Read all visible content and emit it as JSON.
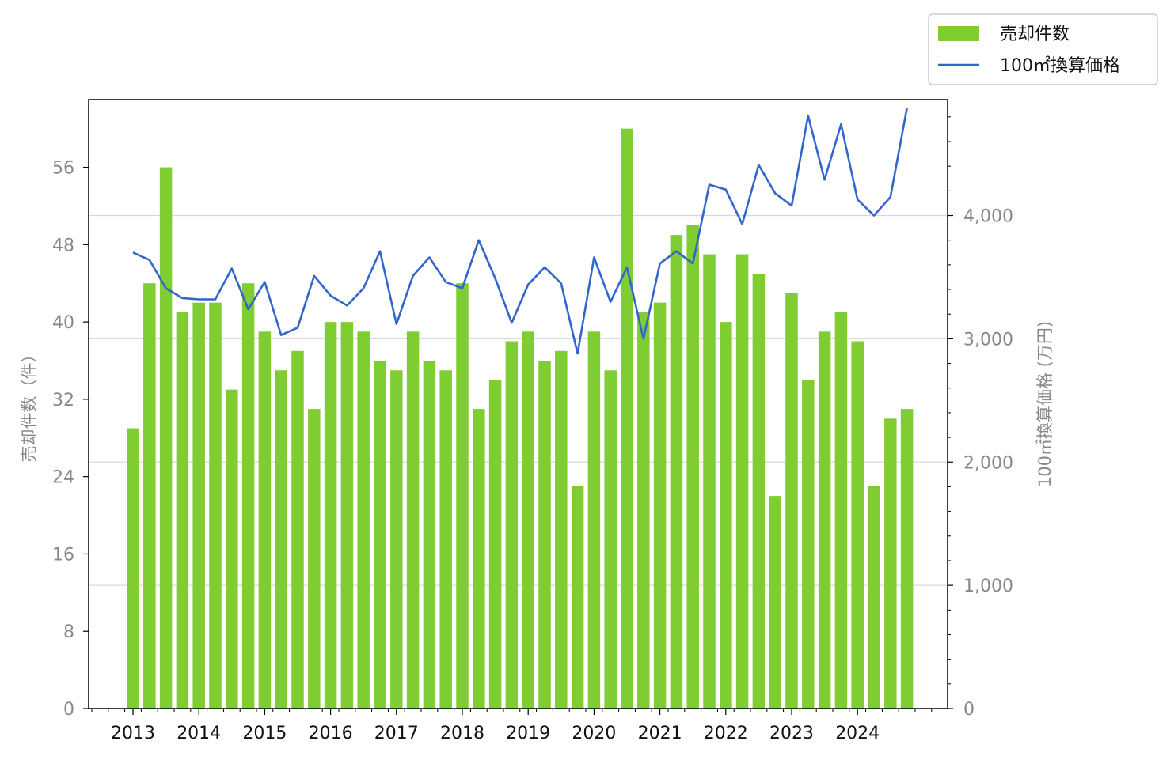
{
  "chart_data": {
    "type": "bar+line",
    "title": "",
    "x": [
      "2013Q1",
      "2013Q2",
      "2013Q3",
      "2013Q4",
      "2014Q1",
      "2014Q2",
      "2014Q3",
      "2014Q4",
      "2015Q1",
      "2015Q2",
      "2015Q3",
      "2015Q4",
      "2016Q1",
      "2016Q2",
      "2016Q3",
      "2016Q4",
      "2017Q1",
      "2017Q2",
      "2017Q3",
      "2017Q4",
      "2018Q1",
      "2018Q2",
      "2018Q3",
      "2018Q4",
      "2019Q1",
      "2019Q2",
      "2019Q3",
      "2019Q4",
      "2020Q1",
      "2020Q2",
      "2020Q3",
      "2020Q4",
      "2021Q1",
      "2021Q2",
      "2021Q3",
      "2021Q4",
      "2022Q1",
      "2022Q2",
      "2022Q3",
      "2022Q4",
      "2023Q1",
      "2023Q2",
      "2023Q3",
      "2023Q4",
      "2024Q1",
      "2024Q2",
      "2024Q3",
      "2024Q4"
    ],
    "x_tick_labels": [
      "2013",
      "2014",
      "2015",
      "2016",
      "2017",
      "2018",
      "2019",
      "2020",
      "2021",
      "2022",
      "2023",
      "2024"
    ],
    "series": [
      {
        "name": "売却件数",
        "type": "bar",
        "axis": "left",
        "color": "#7fcc33",
        "values": [
          29,
          44,
          56,
          41,
          42,
          42,
          33,
          44,
          39,
          35,
          37,
          31,
          40,
          40,
          39,
          36,
          35,
          39,
          36,
          35,
          44,
          31,
          34,
          38,
          39,
          36,
          37,
          23,
          39,
          35,
          60,
          41,
          42,
          49,
          50,
          47,
          40,
          47,
          45,
          22,
          43,
          34,
          39,
          41,
          38,
          23,
          30,
          31
        ]
      },
      {
        "name": "100㎡換算価格",
        "type": "line",
        "axis": "right",
        "color": "#3366cc",
        "values": [
          3700,
          3640,
          3410,
          3330,
          3320,
          3320,
          3570,
          3240,
          3460,
          3030,
          3090,
          3510,
          3350,
          3270,
          3410,
          3710,
          3120,
          3510,
          3660,
          3460,
          3410,
          3800,
          3490,
          3130,
          3440,
          3580,
          3450,
          2880,
          3660,
          3300,
          3580,
          3000,
          3610,
          3710,
          3610,
          4250,
          4210,
          3930,
          4410,
          4180,
          4080,
          4810,
          4290,
          4740,
          4130,
          4000,
          4150,
          4870
        ]
      }
    ],
    "left_axis": {
      "label": "売却件数（件）",
      "lim": [
        0,
        63
      ],
      "ticks": [
        0,
        8,
        16,
        24,
        32,
        40,
        48,
        56
      ]
    },
    "right_axis": {
      "label": "100㎡換算価格 (万円)",
      "lim": [
        0,
        4940
      ],
      "ticks": [
        0,
        1000,
        2000,
        3000,
        4000
      ],
      "tick_labels": [
        "0",
        "1,000",
        "2,000",
        "3,000",
        "4,000"
      ]
    },
    "grid": "horizontal (right axis)",
    "legend": "top-right, outside plot"
  }
}
